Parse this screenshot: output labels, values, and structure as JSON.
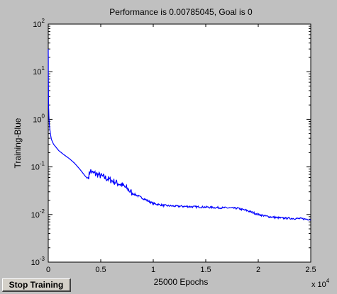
{
  "window": {
    "stop_button_label": "Stop Training"
  },
  "chart_data": {
    "type": "line",
    "title": "Performance is 0.00785045, Goal is 0",
    "xlabel": "25000 Epochs",
    "ylabel": "Training-Blue",
    "x_exponent_label": "x 10",
    "x_exponent_power": "4",
    "xlim": [
      0,
      2.5
    ],
    "ylim_log10": [
      -3,
      2
    ],
    "yscale": "log",
    "x_ticks": [
      {
        "value": 0,
        "label": "0"
      },
      {
        "value": 0.5,
        "label": "0.5"
      },
      {
        "value": 1,
        "label": "1"
      },
      {
        "value": 1.5,
        "label": "1.5"
      },
      {
        "value": 2,
        "label": "2"
      },
      {
        "value": 2.5,
        "label": "2.5"
      }
    ],
    "y_ticks": [
      {
        "exp": 2,
        "base": "10",
        "power": "2"
      },
      {
        "exp": 1,
        "base": "10",
        "power": "1"
      },
      {
        "exp": 0,
        "base": "10",
        "power": "0"
      },
      {
        "exp": -1,
        "base": "10",
        "power": "-1"
      },
      {
        "exp": -2,
        "base": "10",
        "power": "-2"
      },
      {
        "exp": -3,
        "base": "10",
        "power": "-3"
      }
    ],
    "grid": false,
    "colors": {
      "line": "#0000ff",
      "axes_bg": "#ffffff",
      "figure_bg": "#c0c0c0"
    },
    "series": [
      {
        "x": [
          0,
          0.001,
          0.003,
          0.006,
          0.01,
          0.02,
          0.03,
          0.05,
          0.08,
          0.1,
          0.15,
          0.2,
          0.25,
          0.3,
          0.35,
          0.37,
          0.38,
          0.39,
          0.4,
          0.42,
          0.45,
          0.5,
          0.6,
          0.7,
          0.75,
          0.8,
          0.9,
          1.0,
          1.1,
          1.2,
          1.3,
          1.4,
          1.5,
          1.6,
          1.7,
          1.8,
          1.9,
          2.0,
          2.1,
          2.2,
          2.3,
          2.4,
          2.5
        ],
        "y": [
          30,
          10,
          2,
          1.2,
          0.8,
          0.5,
          0.38,
          0.3,
          0.25,
          0.22,
          0.18,
          0.15,
          0.12,
          0.09,
          0.065,
          0.058,
          0.06,
          0.07,
          0.085,
          0.075,
          0.072,
          0.065,
          0.052,
          0.042,
          0.035,
          0.028,
          0.022,
          0.017,
          0.0155,
          0.015,
          0.0148,
          0.0145,
          0.0143,
          0.014,
          0.0138,
          0.0135,
          0.012,
          0.01,
          0.009,
          0.0085,
          0.0083,
          0.0082,
          0.00785
        ]
      }
    ]
  }
}
